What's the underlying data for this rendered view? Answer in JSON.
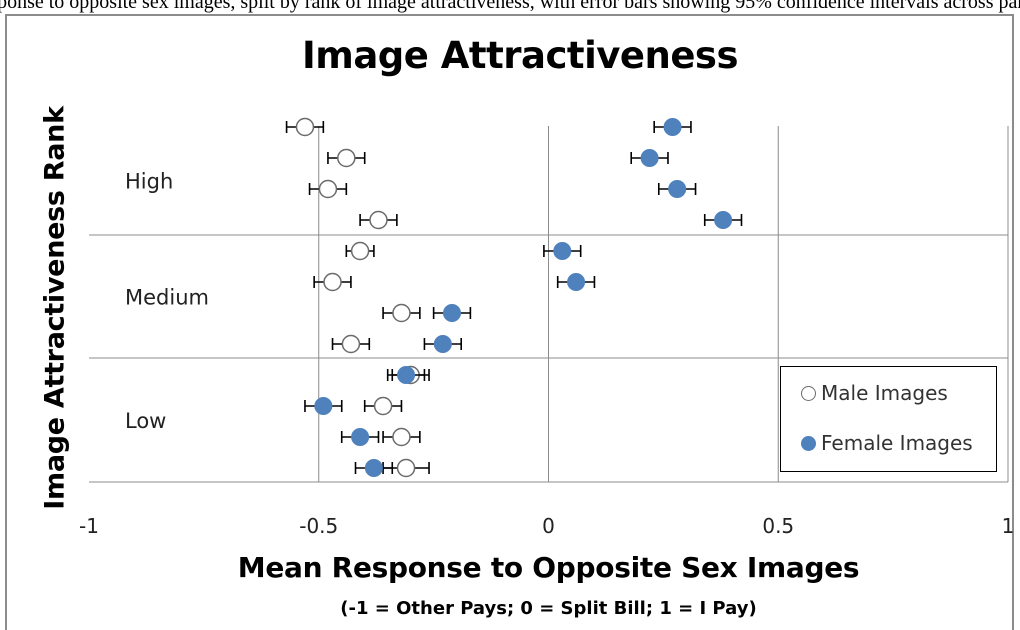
{
  "top_caption": "Mean response to opposite sex images, split by rank of image attractiveness, with error bars showing 95% confidence intervals across participants.",
  "chart_data": {
    "type": "scatter",
    "title": "Image Attractiveness",
    "xlabel": "Mean Response to Opposite Sex Images",
    "xlabel_note": "(-1 = Other Pays; 0 = Split Bill; 1 = I Pay)",
    "ylabel": "Image Attractiveness Rank",
    "xlim": [
      -1,
      1
    ],
    "x_ticks": [
      "-1",
      "-0.5",
      "0",
      "0.5",
      "1"
    ],
    "x_tick_values": [
      -1,
      -0.5,
      0,
      0.5,
      1
    ],
    "orientation": "horizontal",
    "grid": true,
    "groups": [
      "High",
      "Medium",
      "Low"
    ],
    "rows_per_group": 4,
    "legend_position": "bottom-right",
    "series": [
      {
        "name": "Male Images",
        "marker": "open-circle",
        "color": "#6b6b6b",
        "values": [
          -0.53,
          -0.44,
          -0.48,
          -0.37,
          -0.41,
          -0.47,
          -0.32,
          -0.43,
          -0.3,
          -0.36,
          -0.32,
          -0.31
        ],
        "errors": [
          0.04,
          0.04,
          0.04,
          0.04,
          0.03,
          0.04,
          0.04,
          0.04,
          0.04,
          0.04,
          0.04,
          0.05
        ]
      },
      {
        "name": "Female Images",
        "marker": "filled-circle",
        "color": "#4f81bd",
        "values": [
          0.27,
          0.22,
          0.28,
          0.38,
          0.03,
          0.06,
          -0.21,
          -0.23,
          -0.31,
          -0.49,
          -0.41,
          -0.38
        ],
        "errors": [
          0.04,
          0.04,
          0.04,
          0.04,
          0.04,
          0.04,
          0.04,
          0.04,
          0.04,
          0.04,
          0.04,
          0.04
        ]
      }
    ]
  }
}
